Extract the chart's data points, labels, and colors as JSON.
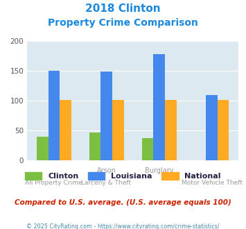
{
  "title_line1": "2018 Clinton",
  "title_line2": "Property Crime Comparison",
  "x_labels_top": [
    "",
    "Arson",
    "Burglary",
    ""
  ],
  "x_labels_bottom": [
    "All Property Crime",
    "Larceny & Theft",
    "",
    "Motor Vehicle Theft"
  ],
  "clinton": [
    40,
    47,
    37,
    0
  ],
  "louisiana": [
    150,
    149,
    178,
    109
  ],
  "national": [
    101,
    101,
    101,
    101
  ],
  "clinton_color": "#7bc043",
  "louisiana_color": "#4488ee",
  "national_color": "#ffaa22",
  "bg_color": "#dce9f0",
  "title_color": "#1a88dd",
  "legend_label_color": "#222244",
  "note_color": "#cc2200",
  "footer_color": "#4488aa",
  "ylim": [
    0,
    200
  ],
  "yticks": [
    0,
    50,
    100,
    150,
    200
  ],
  "note_text": "Compared to U.S. average. (U.S. average equals 100)",
  "footer_text": "© 2025 CityRating.com - https://www.cityrating.com/crime-statistics/"
}
